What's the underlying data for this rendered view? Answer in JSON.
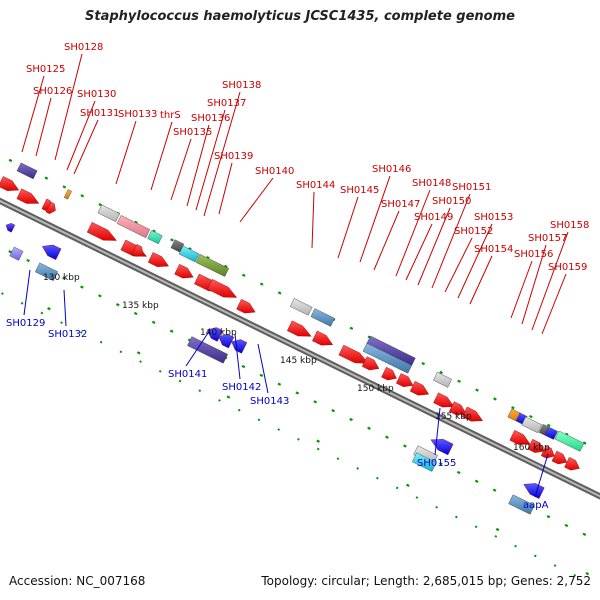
{
  "title": "Staphylococcus haemolyticus JCSC1435, complete genome",
  "footer": {
    "accession": "Accession: NC_007168",
    "summary": "Topology: circular; Length: 2,685,015 bp; Genes: 2,752"
  },
  "colors": {
    "backbone": "#8c8c8c",
    "plus_strand_gene": "#ff0000",
    "minus_strand_gene": "#0000ff",
    "plus_label": "#cc0000",
    "minus_label": "#0000cc",
    "tick": "#009900"
  },
  "scale_labels": [
    "130 kbp",
    "135 kbp",
    "140 kbp",
    "145 kbp",
    "150 kbp",
    "155 kbp",
    "160 kbp"
  ],
  "plus_labels": [
    "SH0125",
    "SH0126",
    "SH0128",
    "SH0130",
    "SH0131",
    "SH0133",
    "thrS",
    "SH0135",
    "SH0136",
    "SH0137",
    "SH0138",
    "SH0139",
    "SH0140",
    "SH0144",
    "SH0145",
    "SH0146",
    "SH0147",
    "SH0148",
    "SH0149",
    "SH0150",
    "SH0151",
    "SH0152",
    "SH0153",
    "SH0154",
    "SH0156",
    "SH0157",
    "SH0158",
    "SH0159"
  ],
  "minus_labels": [
    "SH0129",
    "SH0132",
    "SH0141",
    "SH0142",
    "SH0143",
    "SH0155",
    "aapA"
  ]
}
